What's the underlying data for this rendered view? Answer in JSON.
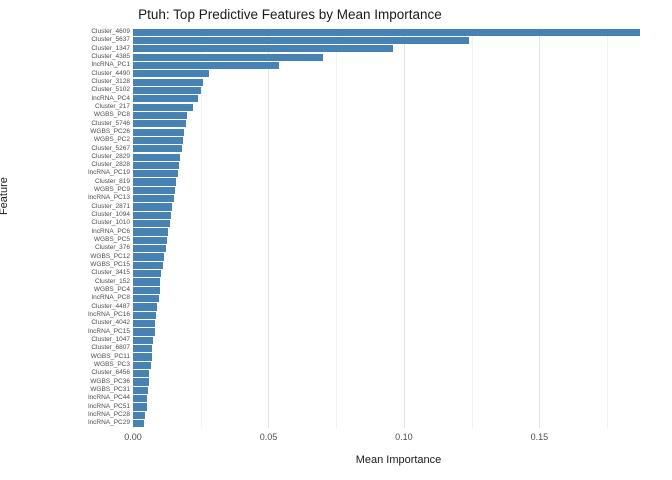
{
  "chart_data": {
    "type": "bar",
    "orientation": "horizontal",
    "title": "Ptuh: Top Predictive Features by Mean Importance",
    "xlabel": "Mean Importance",
    "ylabel": "Feature",
    "xlim": [
      0,
      0.196
    ],
    "xticks": [
      0,
      0.05,
      0.1,
      0.15
    ],
    "xtick_labels": [
      "0.00",
      "0.05",
      "0.10",
      "0.15"
    ],
    "minor_ticks": [
      0.025,
      0.075,
      0.125,
      0.175
    ],
    "bar_color": "#4682B4",
    "grid": "vertical major and minor gridlines, white panel",
    "legend": "none",
    "categories": [
      "Cluster_4609",
      "Cluster_5637",
      "Cluster_1347",
      "Cluster_4385",
      "lncRNA_PC1",
      "Cluster_4490",
      "Cluster_3128",
      "Cluster_5102",
      "lncRNA_PC4",
      "Cluster_217",
      "WGBS_PC8",
      "Cluster_5746",
      "WGBS_PC26",
      "WGBS_PC2",
      "Cluster_5267",
      "Cluster_2829",
      "Cluster_2828",
      "lncRNA_PC19",
      "Cluster_819",
      "WGBS_PC9",
      "lncRNA_PC13",
      "Cluster_2871",
      "Cluster_1094",
      "Cluster_1010",
      "lncRNA_PC6",
      "WGBS_PC5",
      "Cluster_376",
      "WGBS_PC12",
      "WGBS_PC15",
      "Cluster_3415",
      "Cluster_152",
      "WGBS_PC4",
      "lncRNA_PC8",
      "Cluster_4487",
      "lncRNA_PC16",
      "Cluster_4042",
      "lncRNA_PC15",
      "Cluster_1047",
      "Cluster_6807",
      "WGBS_PC11",
      "WGBS_PC3",
      "Cluster_6456",
      "WGBS_PC36",
      "WGBS_PC31",
      "lncRNA_PC44",
      "lncRNA_PC51",
      "lncRNA_PC28",
      "lncRNA_PC29"
    ],
    "values": [
      0.187,
      0.124,
      0.096,
      0.07,
      0.054,
      0.028,
      0.026,
      0.025,
      0.024,
      0.022,
      0.02,
      0.0195,
      0.019,
      0.0185,
      0.018,
      0.0175,
      0.017,
      0.0165,
      0.016,
      0.0155,
      0.015,
      0.0145,
      0.014,
      0.0135,
      0.013,
      0.0125,
      0.012,
      0.0115,
      0.011,
      0.0105,
      0.01,
      0.01,
      0.0095,
      0.009,
      0.0085,
      0.008,
      0.008,
      0.0075,
      0.007,
      0.007,
      0.0065,
      0.006,
      0.006,
      0.0055,
      0.005,
      0.005,
      0.0045,
      0.004
    ]
  }
}
